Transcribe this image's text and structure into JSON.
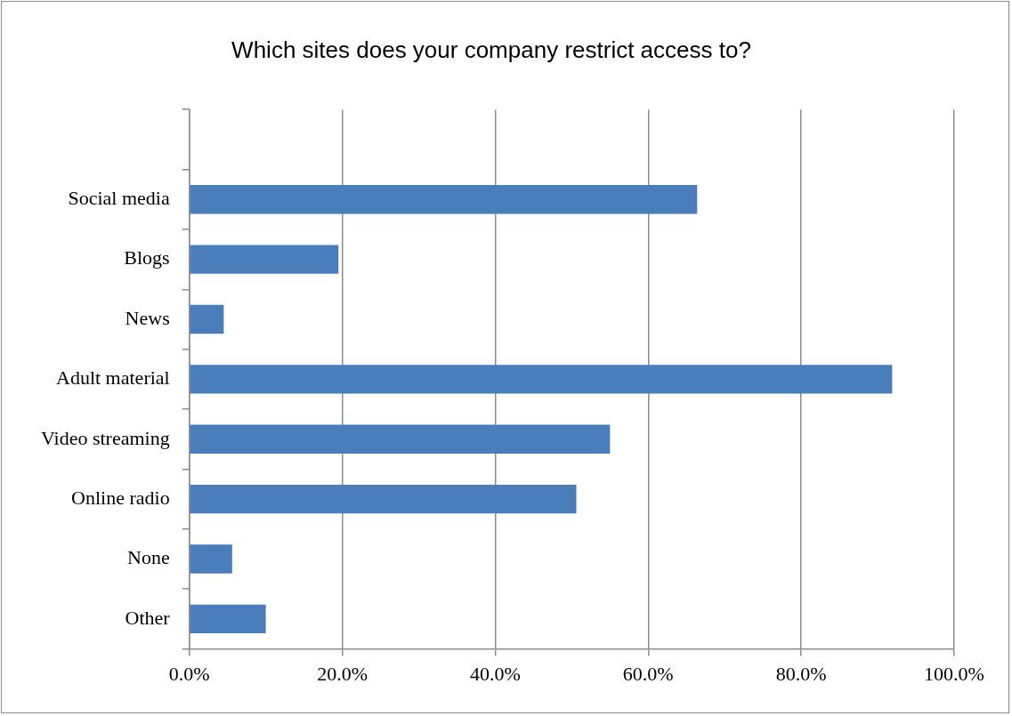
{
  "chart_data": {
    "type": "bar",
    "orientation": "horizontal",
    "title": "Which sites does your company restrict access to?",
    "categories": [
      null,
      "Social media",
      "Blogs",
      "News",
      "Adult material",
      "Video streaming",
      "Online radio",
      "None",
      "Other"
    ],
    "values": [
      null,
      66.4,
      19.5,
      4.5,
      91.9,
      55.0,
      50.6,
      5.6,
      10.0
    ],
    "color": "#4a7ebb",
    "xlim": [
      0,
      100
    ],
    "xticks": [
      {
        "value": 0,
        "label": "0.0%"
      },
      {
        "value": 20,
        "label": "20.0%"
      },
      {
        "value": 40,
        "label": "40.0%"
      },
      {
        "value": 60,
        "label": "60.0%"
      },
      {
        "value": 80,
        "label": "80.0%"
      },
      {
        "value": 100,
        "label": "100.0%"
      }
    ],
    "grid": "x",
    "legend": false
  }
}
